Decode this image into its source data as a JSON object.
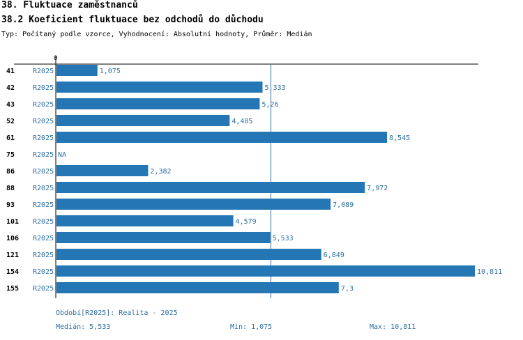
{
  "header": {
    "title": "38. Fluktuace zaměstnanců",
    "subtitle": "38.2 Koeficient fluktuace bez odchodů do důchodu",
    "type_line": "Typ: Počítaný podle vzorce, Vyhodnocení: Absolutní hodnoty, Průměr: Medián"
  },
  "colors": {
    "bar": "#2477b4",
    "text_blue": "#2c6ea4",
    "axis": "#000000",
    "median_line": "#2c6ea4"
  },
  "chart_data": {
    "type": "bar",
    "orientation": "horizontal",
    "axis_zero_label": "0",
    "xlim": [
      0,
      10.811
    ],
    "median": 5.533,
    "rows": [
      {
        "id": "41",
        "period": "R2025",
        "value": 1.075,
        "label": "1,075"
      },
      {
        "id": "42",
        "period": "R2025",
        "value": 5.333,
        "label": "5,333"
      },
      {
        "id": "43",
        "period": "R2025",
        "value": 5.26,
        "label": "5,26"
      },
      {
        "id": "52",
        "period": "R2025",
        "value": 4.485,
        "label": "4,485"
      },
      {
        "id": "61",
        "period": "R2025",
        "value": 8.545,
        "label": "8,545"
      },
      {
        "id": "75",
        "period": "R2025",
        "value": null,
        "label": "NA"
      },
      {
        "id": "86",
        "period": "R2025",
        "value": 2.382,
        "label": "2,382"
      },
      {
        "id": "88",
        "period": "R2025",
        "value": 7.972,
        "label": "7,972"
      },
      {
        "id": "93",
        "period": "R2025",
        "value": 7.089,
        "label": "7,089"
      },
      {
        "id": "101",
        "period": "R2025",
        "value": 4.579,
        "label": "4,579"
      },
      {
        "id": "106",
        "period": "R2025",
        "value": 5.533,
        "label": "5,533"
      },
      {
        "id": "121",
        "period": "R2025",
        "value": 6.849,
        "label": "6,849"
      },
      {
        "id": "154",
        "period": "R2025",
        "value": 10.811,
        "label": "10,811"
      },
      {
        "id": "155",
        "period": "R2025",
        "value": 7.3,
        "label": "7,3"
      }
    ]
  },
  "footer": {
    "period_note": "Období[R2025]: Realita - 2025",
    "median": "Medián: 5,533",
    "min": "Min: 1,075",
    "max": "Max: 10,811"
  }
}
